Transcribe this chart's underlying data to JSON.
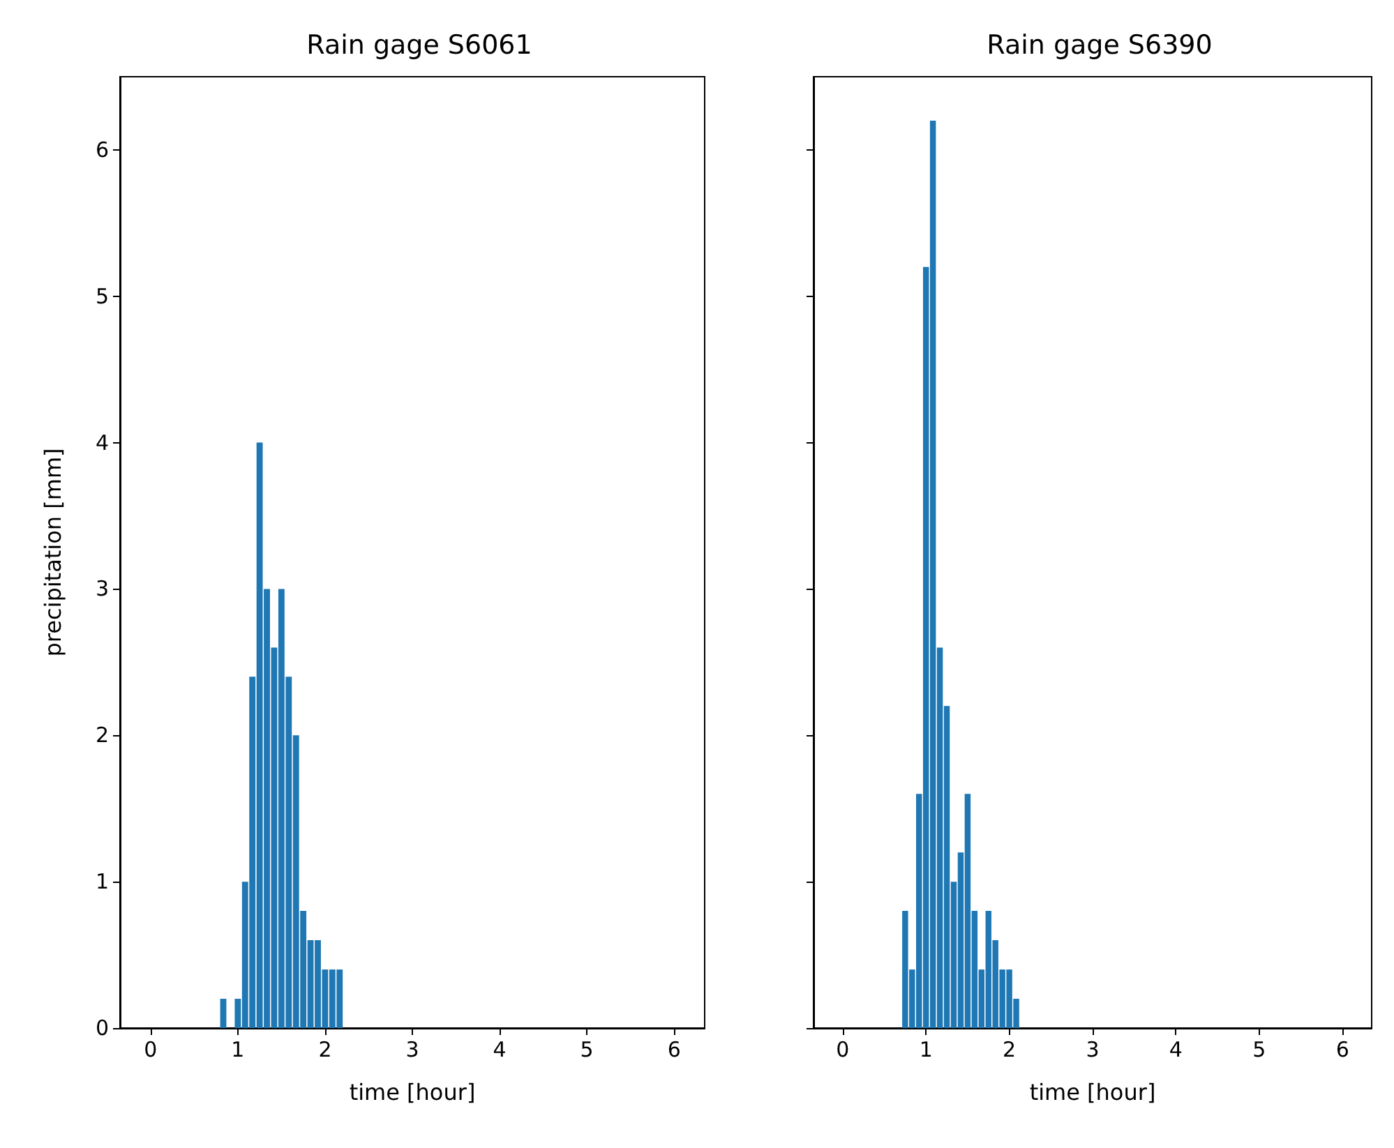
{
  "chart_data": [
    {
      "type": "bar",
      "title": "Rain gage S6061",
      "xlabel": "time [hour]",
      "ylabel": "precipitation [mm]",
      "color": "#1f77b4",
      "x": [
        0.8333,
        1.0,
        1.0833,
        1.1667,
        1.25,
        1.3333,
        1.4167,
        1.5,
        1.5833,
        1.6667,
        1.75,
        1.8333,
        1.9167,
        2.0,
        2.0833,
        2.1667
      ],
      "values": [
        0.2,
        0.2,
        1.0,
        2.4,
        4.0,
        3.0,
        2.6,
        3.0,
        2.4,
        2.0,
        0.8,
        0.6,
        0.6,
        0.4,
        0.4,
        0.4
      ],
      "xlim": [
        -0.35,
        6.35
      ],
      "xticks": [
        0,
        1,
        2,
        3,
        4,
        5,
        6
      ],
      "ylim": [
        0,
        6.5
      ],
      "yticks": [
        0,
        1,
        2,
        3,
        4,
        5,
        6
      ]
    },
    {
      "type": "bar",
      "title": "Rain gage S6390",
      "xlabel": "time [hour]",
      "color": "#1f77b4",
      "x": [
        0.75,
        0.8333,
        0.9167,
        1.0,
        1.0833,
        1.1667,
        1.25,
        1.3333,
        1.4167,
        1.5,
        1.5833,
        1.6667,
        1.75,
        1.8333,
        1.9167,
        2.0,
        2.0833
      ],
      "values": [
        0.8,
        0.4,
        1.6,
        5.2,
        6.2,
        2.6,
        2.2,
        1.0,
        1.2,
        1.6,
        0.8,
        0.4,
        0.8,
        0.6,
        0.4,
        0.4,
        0.2
      ],
      "xlim": [
        -0.35,
        6.35
      ],
      "xticks": [
        0,
        1,
        2,
        3,
        4,
        5,
        6
      ],
      "ylim": [
        0,
        6.5
      ],
      "yticks": [
        0,
        1,
        2,
        3,
        4,
        5,
        6
      ],
      "tick_labels": "x"
    }
  ]
}
